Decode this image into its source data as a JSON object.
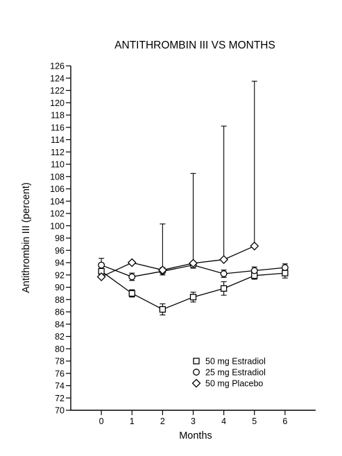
{
  "chart_data": {
    "type": "line",
    "title": "ANTITHROMBIN III VS MONTHS",
    "xlabel": "Months",
    "ylabel": "Antithrombin III (percent)",
    "x": [
      0,
      1,
      2,
      3,
      4,
      5,
      6
    ],
    "x_tick_labels": [
      "0",
      "1",
      "2",
      "3",
      "4",
      "5",
      "6"
    ],
    "xlim": [
      -1,
      7
    ],
    "ylim": [
      70,
      126
    ],
    "y_ticks": [
      70,
      72,
      74,
      76,
      78,
      80,
      82,
      84,
      86,
      88,
      90,
      92,
      94,
      96,
      98,
      100,
      102,
      104,
      106,
      108,
      110,
      112,
      114,
      116,
      118,
      120,
      122,
      124,
      126
    ],
    "grid": false,
    "legend_position": "bottom-right",
    "series": [
      {
        "name": "50 mg Estradiol",
        "marker": "square",
        "x": [
          0,
          1,
          2,
          3,
          4,
          5,
          6
        ],
        "values": [
          92.6,
          89.0,
          86.4,
          88.4,
          89.8,
          91.9,
          92.3
        ],
        "error": [
          0.8,
          0.6,
          0.9,
          0.8,
          1.1,
          0.6,
          0.8
        ]
      },
      {
        "name": "25 mg Estradiol",
        "marker": "circle",
        "x": [
          0,
          1,
          2,
          3,
          4,
          5,
          6
        ],
        "values": [
          93.6,
          91.7,
          92.6,
          93.6,
          92.2,
          92.7,
          93.2
        ],
        "error": [
          1.1,
          0.6,
          0.6,
          0.5,
          0.6,
          0.6,
          0.6
        ]
      },
      {
        "name": "50 mg Placebo",
        "marker": "diamond",
        "x": [
          0,
          1,
          2,
          3,
          4,
          5
        ],
        "values": [
          91.7,
          94.0,
          92.8,
          93.9,
          94.5,
          96.7
        ],
        "error_upper": [
          0.0,
          0.0,
          7.5,
          14.6,
          21.7,
          26.8
        ]
      }
    ]
  }
}
